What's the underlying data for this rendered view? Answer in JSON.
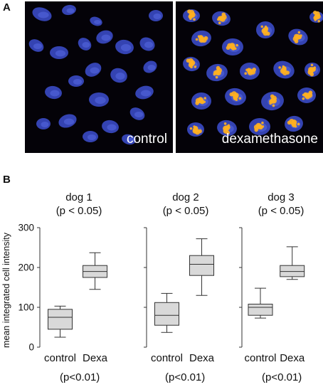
{
  "panel_a": {
    "letter": "A",
    "images": [
      {
        "label": "control"
      },
      {
        "label": "dexamethasone"
      }
    ],
    "colors": {
      "nucleus": "#3d4fd0",
      "signal": "#ffb020",
      "background": "#040208"
    }
  },
  "panel_b": {
    "letter": "B",
    "ylabel": "mean integrated cell intensity"
  },
  "chart_data": {
    "type": "box",
    "ylabel": "mean integrated cell intensity",
    "ylim": [
      0,
      300
    ],
    "yticks": [
      0,
      100,
      200,
      300
    ],
    "categories": [
      "control",
      "Dexa"
    ],
    "box_fill": "#d9d9d9",
    "panels": [
      {
        "title": "dog 1",
        "subtitle": "(p < 0.05)",
        "pvalue_bottom": "(p<0.01)",
        "boxes": [
          {
            "name": "control",
            "min": 25,
            "q1": 45,
            "median": 75,
            "q3": 95,
            "max": 103
          },
          {
            "name": "Dexa",
            "min": 145,
            "q1": 175,
            "median": 190,
            "q3": 205,
            "max": 237
          }
        ]
      },
      {
        "title": "dog 2",
        "subtitle": "(p < 0.05)",
        "pvalue_bottom": "(p<0.01)",
        "boxes": [
          {
            "name": "control",
            "min": 37,
            "q1": 55,
            "median": 80,
            "q3": 112,
            "max": 135
          },
          {
            "name": "Dexa",
            "min": 130,
            "q1": 180,
            "median": 208,
            "q3": 230,
            "max": 272
          }
        ]
      },
      {
        "title": "dog 3",
        "subtitle": "(p < 0.05)",
        "pvalue_bottom": "(p<0.01)",
        "boxes": [
          {
            "name": "control",
            "min": 73,
            "q1": 80,
            "median": 100,
            "q3": 108,
            "max": 148
          },
          {
            "name": "Dexa",
            "min": 170,
            "q1": 177,
            "median": 190,
            "q3": 205,
            "max": 252
          }
        ]
      }
    ]
  }
}
